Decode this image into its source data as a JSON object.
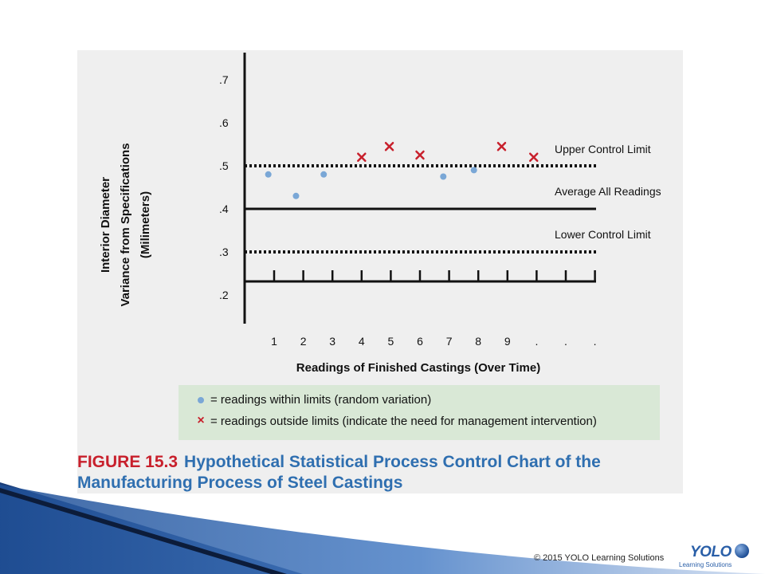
{
  "chart_data": {
    "type": "scatter",
    "title": "Hypothetical Statistical Process Control Chart of the Manufacturing Process of Steel Castings",
    "figure_label": "FIGURE 15.3",
    "ylabel_lines": [
      "Interior Diameter",
      "Variance from Specifications",
      "(Milimeters)"
    ],
    "xlabel": "Readings of Finished Castings (Over Time)",
    "ylim": [
      0.2,
      0.7
    ],
    "y_ticks": [
      ".7",
      ".6",
      ".5",
      ".4",
      ".3",
      ".2"
    ],
    "x_ticks": [
      "1",
      "2",
      "3",
      "4",
      "5",
      "6",
      "7",
      "8",
      "9",
      ".",
      ".",
      "."
    ],
    "reference_lines": [
      {
        "name": "Upper Control Limit",
        "value": 0.5,
        "style": "dotted"
      },
      {
        "name": "Average All Readings",
        "value": 0.4,
        "style": "solid"
      },
      {
        "name": "Lower Control Limit",
        "value": 0.3,
        "style": "dotted"
      }
    ],
    "series": [
      {
        "kind": "within",
        "color": "#7aa7d6",
        "marker": "dot",
        "points": [
          [
            0.8,
            0.48
          ],
          [
            1.75,
            0.43
          ],
          [
            2.7,
            0.48
          ],
          [
            6.8,
            0.475
          ],
          [
            7.85,
            0.49
          ]
        ]
      },
      {
        "kind": "outside",
        "color": "#c8202c",
        "marker": "x",
        "points": [
          [
            4.0,
            0.52
          ],
          [
            4.95,
            0.545
          ],
          [
            6.0,
            0.525
          ],
          [
            8.8,
            0.545
          ],
          [
            9.9,
            0.52
          ]
        ]
      }
    ],
    "legend": [
      {
        "marker": "dot",
        "text": "= readings within limits (random variation)"
      },
      {
        "marker": "x",
        "text": "= readings outside limits (indicate the need for management intervention)"
      }
    ],
    "grid": false
  },
  "footer": {
    "copyright": "© 2015 YOLO Learning Solutions",
    "logo_text": "YOLO",
    "logo_sub": "Learning Solutions"
  },
  "colors": {
    "accent_blue": "#2f6fb0",
    "accent_red": "#c8202c",
    "legend_bg": "#d9e8d6",
    "panel_bg": "#efefef"
  }
}
